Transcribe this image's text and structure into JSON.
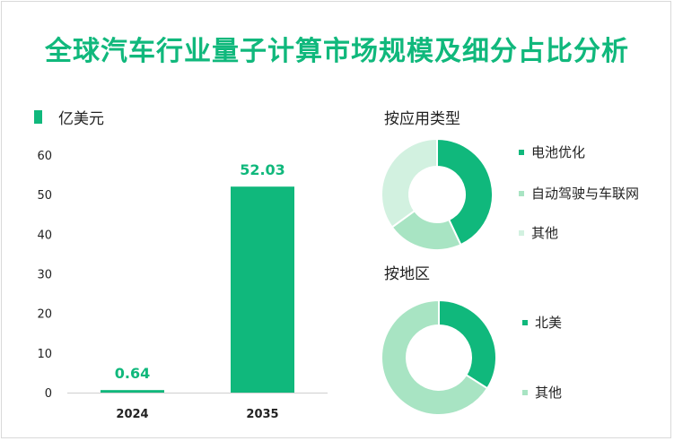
{
  "title": "全球汽车行业量子计算市场规模及细分占比分析",
  "colors": {
    "accent": "#10b87c",
    "medium": "#a8e4c3",
    "light": "#d2f1e0"
  },
  "chart_data": [
    {
      "type": "bar",
      "unit_legend": "亿美元",
      "categories": [
        "2024",
        "2035"
      ],
      "values": [
        0.64,
        52.03
      ],
      "value_labels": [
        "0.64",
        "52.03"
      ],
      "y_ticks": [
        "0",
        "10",
        "20",
        "30",
        "40",
        "50",
        "60"
      ],
      "ylim": [
        0,
        60
      ]
    },
    {
      "type": "pie",
      "title": "按应用类型",
      "labels": [
        "电池优化",
        "自动驾驶与车联网",
        "其他"
      ],
      "values": [
        43,
        22,
        35
      ],
      "colors": [
        "#10b87c",
        "#a8e4c3",
        "#d2f1e0"
      ]
    },
    {
      "type": "pie",
      "title": "按地区",
      "labels": [
        "北美",
        "其他"
      ],
      "values": [
        34,
        66
      ],
      "colors": [
        "#10b87c",
        "#a8e4c3"
      ]
    }
  ]
}
